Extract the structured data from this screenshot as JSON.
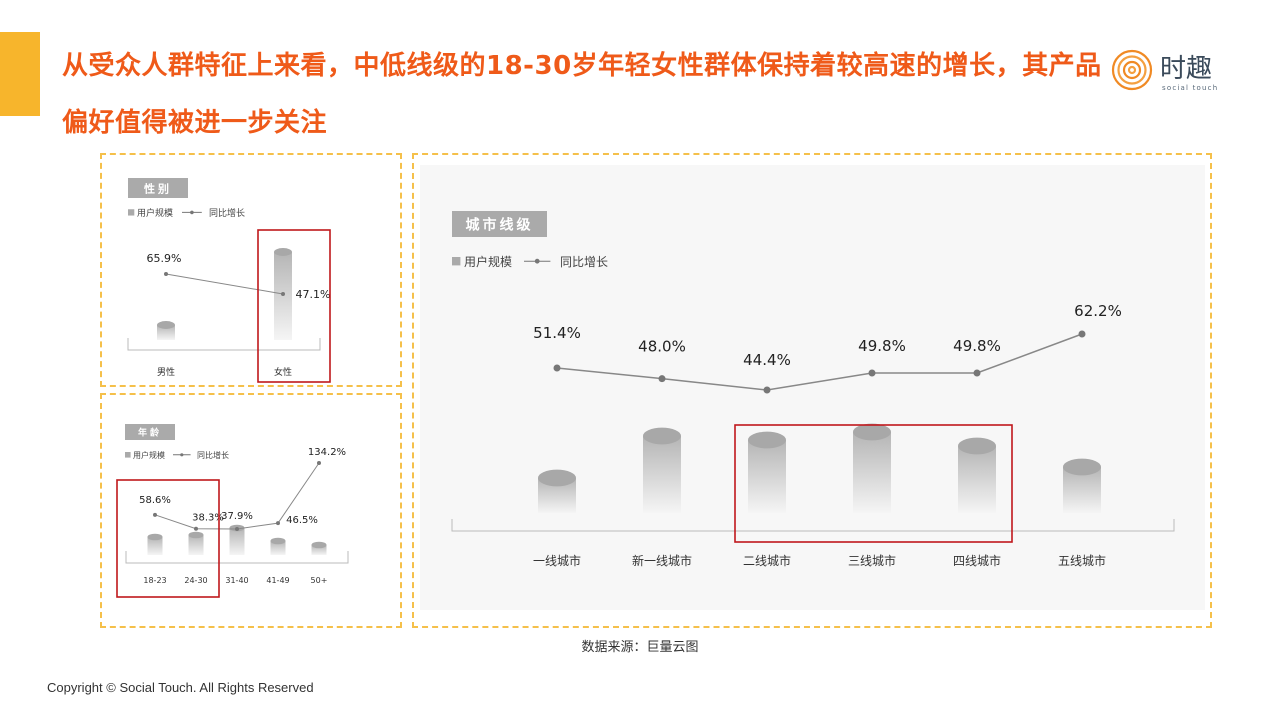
{
  "title": "从受众人群特征上来看，中低线级的18-30岁年轻女性群体保持着较高速的增长，其产品偏好值得被进一步关注",
  "logo": {
    "text": "时趣",
    "subtext": "social touch",
    "color": "#f08a24"
  },
  "colors": {
    "title": "#ef5a19",
    "accent": "#f7b52c",
    "highlight": "#c0181c",
    "panel_border": "#f5c04a"
  },
  "legend": {
    "bar": "用户规模",
    "line": "同比增长"
  },
  "chart_data": [
    {
      "type": "bar+line",
      "title": "性别",
      "categories": [
        "男性",
        "女性"
      ],
      "bar_series": {
        "name": "用户规模",
        "relative_values": [
          15,
          88
        ]
      },
      "line_series": {
        "name": "同比增长",
        "values": [
          65.9,
          47.1
        ],
        "labels": [
          "65.9%",
          "47.1%"
        ]
      },
      "highlighted": [
        "女性"
      ]
    },
    {
      "type": "bar+line",
      "title": "年龄",
      "categories": [
        "18-23",
        "24-30",
        "31-40",
        "41-49",
        "50+"
      ],
      "bar_series": {
        "name": "用户规模",
        "relative_values": [
          18,
          20,
          27,
          14,
          10
        ]
      },
      "line_series": {
        "name": "同比增长",
        "values": [
          58.6,
          38.3,
          37.9,
          46.5,
          134.2
        ],
        "labels": [
          "58.6%",
          "38.3%",
          "37.9%",
          "46.5%",
          "134.2%"
        ]
      },
      "highlighted": [
        "18-23",
        "24-30"
      ]
    },
    {
      "type": "bar+line",
      "title": "城市线级",
      "categories": [
        "一线城市",
        "新一线城市",
        "二线城市",
        "三线城市",
        "四线城市",
        "五线城市"
      ],
      "bar_series": {
        "name": "用户规模",
        "relative_values": [
          35,
          77,
          73,
          81,
          67,
          46
        ]
      },
      "line_series": {
        "name": "同比增长",
        "values": [
          51.4,
          48.0,
          44.4,
          49.8,
          49.8,
          62.2
        ],
        "labels": [
          "51.4%",
          "48.0%",
          "44.4%",
          "49.8%",
          "49.8%",
          "62.2%"
        ]
      },
      "highlighted": [
        "二线城市",
        "三线城市",
        "四线城市"
      ]
    }
  ],
  "source": "数据来源：巨量云图",
  "copyright": "Copyright © Social Touch. All Rights Reserved"
}
